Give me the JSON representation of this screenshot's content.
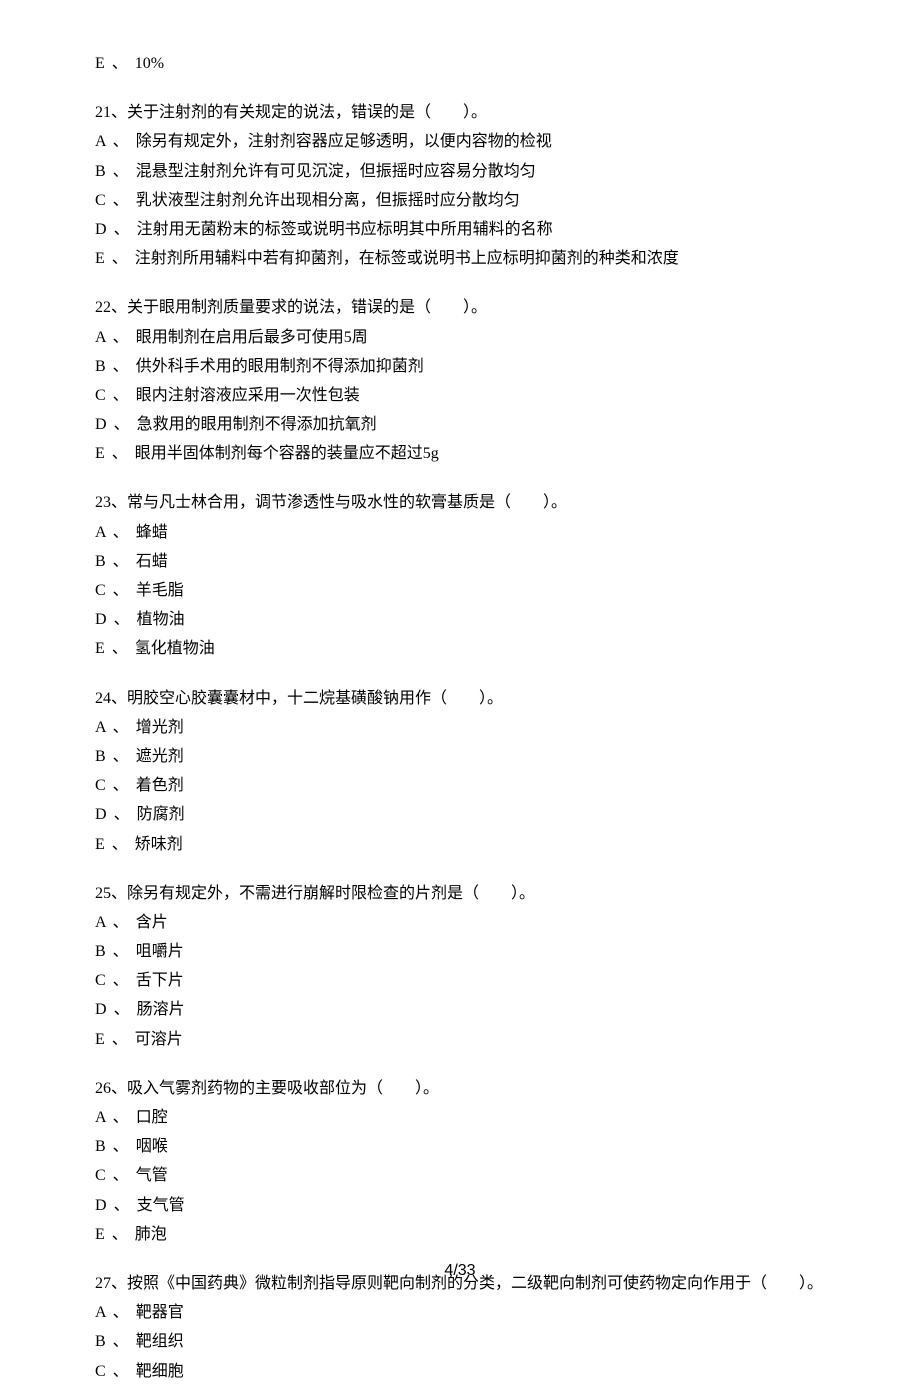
{
  "page_number": "4/33",
  "text_color": "#000000",
  "background_color": "#ffffff",
  "font_size_pt": 12,
  "q20_option_e": {
    "letter": "E",
    "sep": "、",
    "text": "10%"
  },
  "q21": {
    "stem": "21、关于注射剂的有关规定的说法，错误的是（　　）。",
    "options": [
      {
        "letter": "A",
        "sep": "、",
        "text": "除另有规定外，注射剂容器应足够透明，以便内容物的检视"
      },
      {
        "letter": "B",
        "sep": "、",
        "text": "混悬型注射剂允许有可见沉淀，但振摇时应容易分散均匀"
      },
      {
        "letter": "C",
        "sep": "、",
        "text": "乳状液型注射剂允许出现相分离，但振摇时应分散均匀"
      },
      {
        "letter": "D",
        "sep": "、",
        "text": "注射用无菌粉末的标签或说明书应标明其中所用辅料的名称"
      },
      {
        "letter": "E",
        "sep": "、",
        "text": "注射剂所用辅料中若有抑菌剂，在标签或说明书上应标明抑菌剂的种类和浓度"
      }
    ]
  },
  "q22": {
    "stem": "22、关于眼用制剂质量要求的说法，错误的是（　　）。",
    "options": [
      {
        "letter": "A",
        "sep": "、",
        "text": "眼用制剂在启用后最多可使用5周"
      },
      {
        "letter": "B",
        "sep": "、",
        "text": "供外科手术用的眼用制剂不得添加抑菌剂"
      },
      {
        "letter": "C",
        "sep": "、",
        "text": "眼内注射溶液应采用一次性包装"
      },
      {
        "letter": "D",
        "sep": "、",
        "text": "急救用的眼用制剂不得添加抗氧剂"
      },
      {
        "letter": "E",
        "sep": "、",
        "text": "眼用半固体制剂每个容器的装量应不超过5g"
      }
    ]
  },
  "q23": {
    "stem": "23、常与凡士林合用，调节渗透性与吸水性的软膏基质是（　　）。",
    "options": [
      {
        "letter": "A",
        "sep": "、",
        "text": "蜂蜡"
      },
      {
        "letter": "B",
        "sep": "、",
        "text": "石蜡"
      },
      {
        "letter": "C",
        "sep": "、",
        "text": "羊毛脂"
      },
      {
        "letter": "D",
        "sep": "、",
        "text": "植物油"
      },
      {
        "letter": "E",
        "sep": "、",
        "text": "氢化植物油"
      }
    ]
  },
  "q24": {
    "stem": "24、明胶空心胶囊囊材中，十二烷基磺酸钠用作（　　）。",
    "options": [
      {
        "letter": "A",
        "sep": "、",
        "text": "增光剂"
      },
      {
        "letter": "B",
        "sep": "、",
        "text": "遮光剂"
      },
      {
        "letter": "C",
        "sep": "、",
        "text": "着色剂"
      },
      {
        "letter": "D",
        "sep": "、",
        "text": "防腐剂"
      },
      {
        "letter": "E",
        "sep": "、",
        "text": "矫味剂"
      }
    ]
  },
  "q25": {
    "stem": "25、除另有规定外，不需进行崩解时限检查的片剂是（　　）。",
    "options": [
      {
        "letter": "A",
        "sep": "、",
        "text": "含片"
      },
      {
        "letter": "B",
        "sep": "、",
        "text": "咀嚼片"
      },
      {
        "letter": "C",
        "sep": "、",
        "text": "舌下片"
      },
      {
        "letter": "D",
        "sep": "、",
        "text": "肠溶片"
      },
      {
        "letter": "E",
        "sep": "、",
        "text": "可溶片"
      }
    ]
  },
  "q26": {
    "stem": "26、吸入气雾剂药物的主要吸收部位为（　　）。",
    "options": [
      {
        "letter": "A",
        "sep": "、",
        "text": "口腔"
      },
      {
        "letter": "B",
        "sep": "、",
        "text": "咽喉"
      },
      {
        "letter": "C",
        "sep": "、",
        "text": "气管"
      },
      {
        "letter": "D",
        "sep": "、",
        "text": "支气管"
      },
      {
        "letter": "E",
        "sep": "、",
        "text": "肺泡"
      }
    ]
  },
  "q27": {
    "stem": "27、按照《中国药典》微粒制剂指导原则靶向制剂的分类，二级靶向制剂可使药物定向作用于（　　）。",
    "options": [
      {
        "letter": "A",
        "sep": "、",
        "text": "靶器官"
      },
      {
        "letter": "B",
        "sep": "、",
        "text": "靶组织"
      },
      {
        "letter": "C",
        "sep": "、",
        "text": "靶细胞"
      }
    ]
  }
}
